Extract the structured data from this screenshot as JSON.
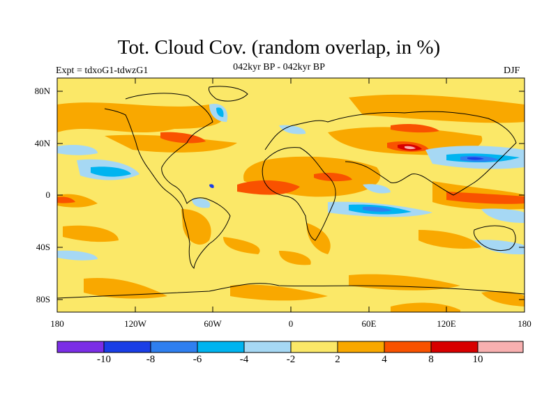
{
  "title": "Tot. Cloud Cov. (random overlap, in %)",
  "subtitle": "042kyr BP - 042kyr BP",
  "left_label": "Expt = tdxoG1-tdwzG1",
  "right_label": "DJF",
  "y_ticks": [
    "80N",
    "40N",
    "0",
    "40S",
    "80S"
  ],
  "x_ticks": [
    "180",
    "120W",
    "60W",
    "0",
    "60E",
    "120E",
    "180"
  ],
  "colorbar": {
    "colors": [
      "#7b2ee6",
      "#1a3ee6",
      "#2f7ff0",
      "#00b4f0",
      "#a6d8f4",
      "#fbe868",
      "#f9a800",
      "#f95200",
      "#d80000",
      "#f8b0b0"
    ],
    "labels": [
      "-10",
      "-8",
      "-6",
      "-4",
      "-2",
      "2",
      "4",
      "8",
      "10"
    ]
  },
  "colors": {
    "background_field": "#fbe868",
    "coastline": "#000000"
  }
}
